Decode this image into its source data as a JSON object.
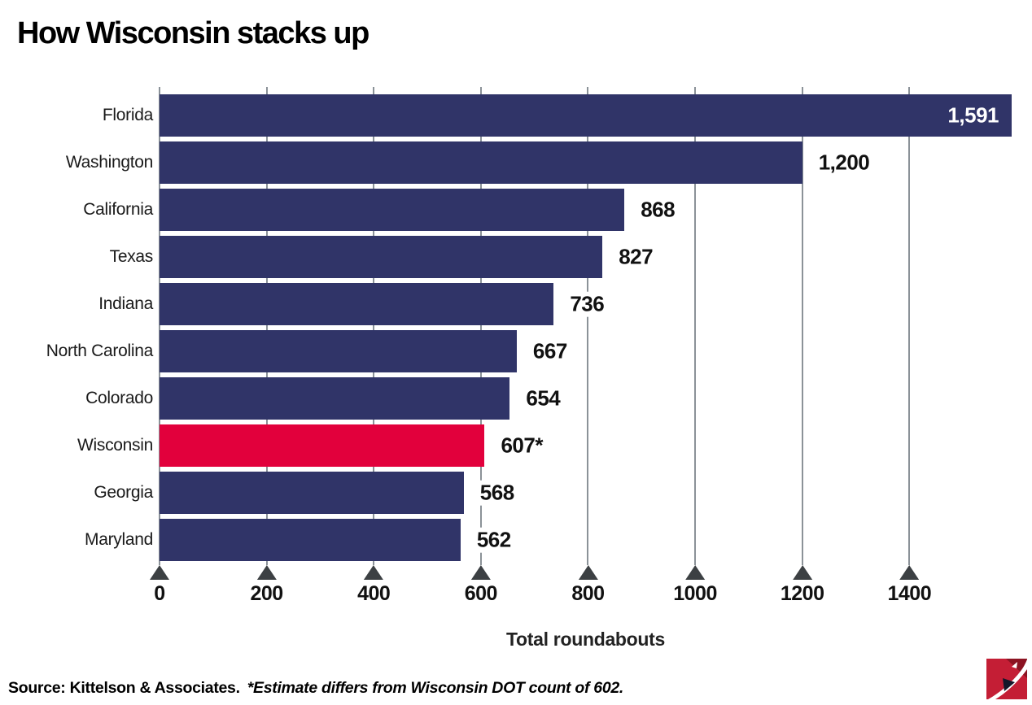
{
  "title": "How Wisconsin stacks up",
  "chart_data": {
    "type": "bar",
    "orientation": "horizontal",
    "title": "How Wisconsin stacks up",
    "xlabel": "Total roundabouts",
    "categories": [
      "Florida",
      "Washington",
      "California",
      "Texas",
      "Indiana",
      "North Carolina",
      "Colorado",
      "Wisconsin",
      "Georgia",
      "Maryland"
    ],
    "values": [
      1591,
      1200,
      868,
      827,
      736,
      667,
      654,
      607,
      568,
      562
    ],
    "value_labels": [
      "1,591",
      "1,200",
      "868",
      "827",
      "736",
      "667",
      "654",
      "607*",
      "568",
      "562"
    ],
    "highlighted_category": "Wisconsin",
    "highlight_index": 7,
    "inside_value_index": 0,
    "xlim": [
      0,
      1591
    ],
    "ticks": [
      0,
      200,
      400,
      600,
      800,
      1000,
      1200,
      1400
    ],
    "tick_labels": [
      "0",
      "200",
      "400",
      "600",
      "800",
      "1000",
      "1200",
      "1400"
    ],
    "grid": true,
    "legend": "none",
    "bar_color": "#303468",
    "highlight_color": "#e2003c",
    "gridline_color": "#8b9298",
    "tick_marker_color": "#3c4043"
  },
  "source": {
    "prefix": "Source: Kittelson & Associates.",
    "note": "*Estimate differs from Wisconsin DOT count of 602."
  },
  "logo": {
    "name": "journal-sentinel-logo",
    "colors": {
      "red": "#c41e35",
      "dark_red": "#8c1322",
      "dark_navy": "#14172a",
      "white": "#ffffff"
    }
  }
}
